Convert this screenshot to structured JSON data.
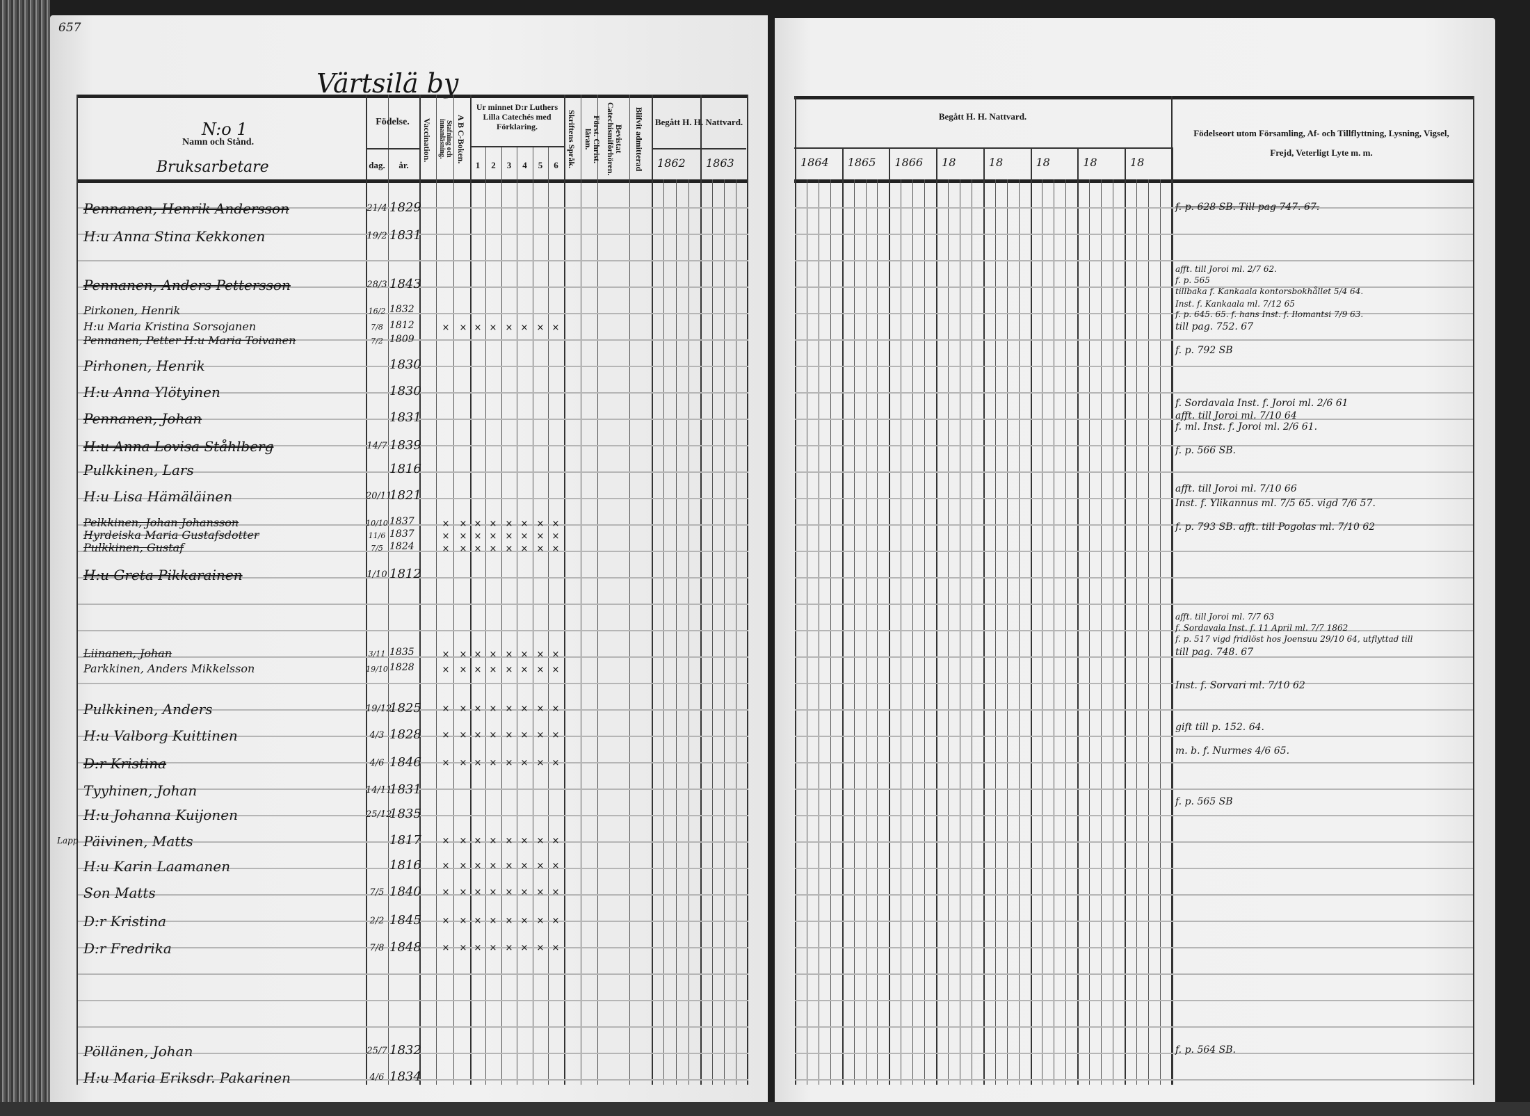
{
  "page_number": "657",
  "village_title": "Värtsilä by",
  "left_header": {
    "entry_no": "N:o 1",
    "name_col": "Namn och Stånd.",
    "occupation": "Bruksarbetare",
    "birth": "Födelse.",
    "day": "dag.",
    "year": "år.",
    "vaccination": "Vaccination.",
    "reading": "Stafning och innanläsning.",
    "abc": "A B C-Boken.",
    "catechism": "Ur minnet D:r Luthers Lilla Catechés med Förklaring.",
    "catechism_parts": [
      "1",
      "2",
      "3",
      "4",
      "5",
      "6"
    ],
    "scripture": "Skriftens Språk.",
    "christian": "Först. Christ. läran.",
    "hearings": "Bevistat Catechismiförhören.",
    "admitted": "Blifvit admitterad",
    "communion": "Begått H. H. Nattvard.",
    "communion_years": [
      "1862",
      "1863"
    ]
  },
  "right_header": {
    "communion": "Begått H. H. Nattvard.",
    "communion_years": [
      "1864",
      "1865",
      "1866",
      "18",
      "18",
      "18",
      "18",
      "18"
    ],
    "remarks": "Födelseort utom Församling, Af- och Tillflyttning, Lysning, Vigsel, Frejd, Veterligt Lyte m. m."
  },
  "rows": [
    {
      "name": "Pennanen, Henrik Andersson",
      "day": "21/4",
      "year": "1829",
      "struck": true,
      "marks": []
    },
    {
      "name": "H:u Anna Stina Kekkonen",
      "day": "19/2",
      "year": "1831",
      "struck": false,
      "marks": []
    },
    {
      "name": "Pennanen, Anders Pettersson",
      "day": "28/3",
      "year": "1843",
      "struck": true,
      "marks": []
    },
    {
      "name": "Pirkonen, Henrik",
      "day": "16/2",
      "year": "1832",
      "struck": false,
      "marks": []
    },
    {
      "name": "H:u Maria Kristina Sorsojanen",
      "day": "7/8",
      "year": "1812",
      "struck": false,
      "marks": [
        "×",
        "×",
        "×",
        "×",
        "×",
        "×",
        "×",
        "×"
      ]
    },
    {
      "name": "Pennanen, Petter H:u Maria Toivanen",
      "day": "7/2",
      "year": "1809",
      "struck": true,
      "marks": []
    },
    {
      "name": "Pirhonen, Henrik",
      "day": "",
      "year": "1830",
      "struck": false,
      "marks": []
    },
    {
      "name": "H:u Anna Ylötyinen",
      "day": "",
      "year": "1830",
      "struck": false,
      "marks": []
    },
    {
      "name": "Pennanen, Johan",
      "day": "",
      "year": "1831",
      "struck": true,
      "marks": []
    },
    {
      "name": "H:u Anna Lovisa Ståhlberg",
      "day": "14/7",
      "year": "1839",
      "struck": true,
      "marks": []
    },
    {
      "name": "Pulkkinen, Lars",
      "day": "",
      "year": "1816",
      "struck": false,
      "marks": []
    },
    {
      "name": "H:u Lisa Hämäläinen",
      "day": "20/11",
      "year": "1821",
      "struck": false,
      "marks": []
    },
    {
      "name": "Pelkkinen, Johan Johansson",
      "day": "10/10",
      "year": "1837",
      "struck": true,
      "marks": [
        "×",
        "×",
        "×",
        "×",
        "×",
        "×",
        "×",
        "×"
      ]
    },
    {
      "name": "Hyrdeiska Maria Gustafsdotter",
      "day": "11/6",
      "year": "1837",
      "struck": true,
      "marks": [
        "×",
        "×",
        "×",
        "×",
        "×",
        "×",
        "×",
        "×"
      ]
    },
    {
      "name": "Pulkkinen, Gustaf",
      "day": "7/5",
      "year": "1824",
      "struck": true,
      "marks": [
        "×",
        "×",
        "×",
        "×",
        "×",
        "×",
        "×",
        "×"
      ]
    },
    {
      "name": "H:u Greta Pikkarainen",
      "day": "1/10",
      "year": "1812",
      "struck": true,
      "marks": []
    },
    {
      "name": "Liinanen, Johan",
      "day": "3/11",
      "year": "1835",
      "struck": true,
      "marks": [
        "×",
        "×",
        "×",
        "×",
        "×",
        "×",
        "×",
        "×"
      ]
    },
    {
      "name": "Parkkinen, Anders Mikkelsson",
      "day": "19/10",
      "year": "1828",
      "struck": false,
      "marks": [
        "×",
        "×",
        "×",
        "×",
        "×",
        "×",
        "×",
        "×"
      ]
    },
    {
      "name": "Pulkkinen, Anders",
      "day": "19/12",
      "year": "1825",
      "struck": false,
      "marks": [
        "×",
        "×",
        "×",
        "×",
        "×",
        "×",
        "×",
        "×"
      ]
    },
    {
      "name": "H:u Valborg Kuittinen",
      "day": "4/3",
      "year": "1828",
      "struck": false,
      "marks": [
        "×",
        "×",
        "×",
        "×",
        "×",
        "×",
        "×",
        "×"
      ]
    },
    {
      "name": "D:r Kristina",
      "day": "4/6",
      "year": "1846",
      "struck": true,
      "marks": [
        "×",
        "×",
        "×",
        "×",
        "×",
        "×",
        "×",
        "×"
      ]
    },
    {
      "name": "Tyyhinen, Johan",
      "day": "14/11",
      "year": "1831",
      "struck": false,
      "marks": []
    },
    {
      "name": "H:u Johanna Kuijonen",
      "day": "25/12",
      "year": "1835",
      "struck": false,
      "marks": []
    },
    {
      "name": "Päivinen, Matts",
      "day": "",
      "year": "1817",
      "struck": false,
      "marks": [
        "×",
        "×",
        "×",
        "×",
        "×",
        "×",
        "×",
        "×"
      ],
      "margin": "Lapp"
    },
    {
      "name": "H:u Karin Laamanen",
      "day": "",
      "year": "1816",
      "struck": false,
      "marks": [
        "×",
        "×",
        "×",
        "×",
        "×",
        "×",
        "×",
        "×"
      ]
    },
    {
      "name": "Son Matts",
      "day": "7/5",
      "year": "1840",
      "struck": false,
      "marks": [
        "×",
        "×",
        "×",
        "×",
        "×",
        "×",
        "×",
        "×"
      ]
    },
    {
      "name": "D:r Kristina",
      "day": "2/2",
      "year": "1845",
      "struck": false,
      "marks": [
        "×",
        "×",
        "×",
        "×",
        "×",
        "×",
        "×",
        "×"
      ]
    },
    {
      "name": "D:r Fredrika",
      "day": "7/8",
      "year": "1848",
      "struck": false,
      "marks": [
        "×",
        "×",
        "×",
        "×",
        "×",
        "×",
        "×",
        "×"
      ]
    },
    {
      "name": "Pöllänen, Johan",
      "day": "25/7",
      "year": "1832",
      "struck": false,
      "marks": []
    },
    {
      "name": "H:u Maria Eriksdr. Pakarinen",
      "day": "4/6",
      "year": "1834",
      "struck": false,
      "marks": []
    }
  ],
  "remarks": [
    "f. p. 628 SB. Till pag 747. 67.",
    "afft. till Joroi ml. 2/7 62.",
    "f. p. 565",
    "tillbaka f. Kankaala kontorsbokhållet 5/4 64.",
    "Inst. f. Kankaala ml. 7/12 65",
    "f. p. 645. 65. f. hans Inst. f. Ilomantsi 7/9 63.",
    "till pag. 752. 67",
    "f. p. 792 SB",
    "f. Sordavala Inst. f. Joroi ml. 2/6 61",
    "afft. till Joroi ml. 7/10 64",
    "f. ml. Inst. f. Joroi ml. 2/6 61.",
    "f. p. 566 SB.",
    "afft. till Joroi ml. 7/10 66",
    "Inst. f. Ylikannus ml. 7/5 65. vigd 7/6 57.",
    "f. p. 793 SB. afft. till Pogolas ml. 7/10 62",
    "afft. till Joroi ml. 7/7 63",
    "f. Sordavala Inst. f. 11 April ml. 7/7 1862",
    "f. p. 517 vigd fridlöst hos Joensuu 29/10 64, utflyttad till",
    "till pag. 748. 67",
    "Inst. f. Sorvari ml. 7/10 62",
    "gift till p. 152. 64.",
    "m. b. f. Nurmes 4/6 65.",
    "f. p. 565 SB",
    "f. p. 564 SB."
  ],
  "colors": {
    "paper": "#efefef",
    "ink": "#161616",
    "rule": "#b5b5b5",
    "edge": "#1e1e1e"
  }
}
